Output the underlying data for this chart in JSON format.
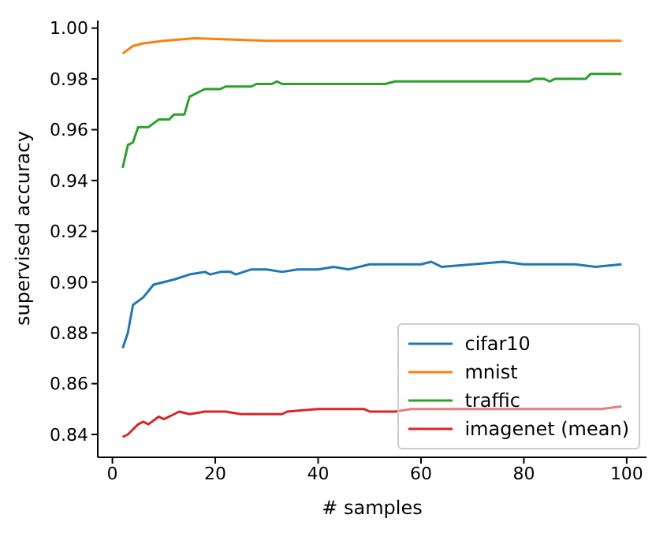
{
  "chart_data": {
    "type": "line",
    "xlabel": "# samples",
    "ylabel": "supervised accuracy",
    "xlim": [
      -2.85,
      103.85
    ],
    "xticks": [
      0,
      20,
      40,
      60,
      80,
      100
    ],
    "ylim": [
      0.831,
      1.003
    ],
    "yticks": [
      0.84,
      0.86,
      0.88,
      {
        "value": 0.9,
        "label": "0.90"
      },
      0.92,
      0.94,
      0.96,
      0.98,
      {
        "value": 1,
        "label": "1.00"
      }
    ],
    "grid": false,
    "legend": "bottom right",
    "marker": "none",
    "line_style": "solid",
    "series": [
      {
        "name": "cifar10",
        "color": "#1f77b4",
        "x": [
          2,
          3,
          4,
          6,
          8,
          10,
          12,
          15,
          18,
          19,
          21,
          23,
          24,
          27,
          30,
          33,
          36,
          40,
          43,
          46,
          50,
          55,
          60,
          62,
          64,
          70,
          76,
          80,
          90,
          94,
          99
        ],
        "values": [
          0.874,
          0.88,
          0.891,
          0.894,
          0.899,
          0.9,
          0.901,
          0.903,
          0.904,
          0.903,
          0.904,
          0.904,
          0.903,
          0.905,
          0.905,
          0.904,
          0.905,
          0.905,
          0.906,
          0.905,
          0.907,
          0.907,
          0.907,
          0.908,
          0.906,
          0.907,
          0.908,
          0.907,
          0.907,
          0.906,
          0.907
        ]
      },
      {
        "name": "mnist",
        "color": "#ff7f0e",
        "x": [
          2,
          4,
          6,
          10,
          16,
          30,
          50,
          70,
          90,
          99
        ],
        "values": [
          0.99,
          0.993,
          0.994,
          0.995,
          0.996,
          0.995,
          0.995,
          0.995,
          0.995,
          0.995
        ]
      },
      {
        "name": "traffic",
        "color": "#2ca02c",
        "x": [
          2,
          3,
          4,
          5,
          7,
          9,
          11,
          12,
          14,
          15,
          16,
          18,
          21,
          22,
          27,
          28,
          31,
          32,
          33,
          53,
          55,
          81,
          82,
          84,
          85,
          86,
          92,
          93,
          99
        ],
        "values": [
          0.945,
          0.954,
          0.955,
          0.961,
          0.961,
          0.964,
          0.964,
          0.966,
          0.966,
          0.973,
          0.974,
          0.976,
          0.976,
          0.977,
          0.977,
          0.978,
          0.978,
          0.979,
          0.978,
          0.978,
          0.979,
          0.979,
          0.98,
          0.98,
          0.979,
          0.98,
          0.98,
          0.982,
          0.982
        ]
      },
      {
        "name": "imagenet (mean)",
        "color": "#d62728",
        "x": [
          2,
          3,
          5,
          6,
          7,
          9,
          10,
          12,
          13,
          15,
          18,
          22,
          25,
          30,
          33,
          34,
          40,
          45,
          49,
          50,
          55,
          58,
          65,
          75,
          85,
          95,
          99
        ],
        "values": [
          0.839,
          0.84,
          0.844,
          0.845,
          0.844,
          0.847,
          0.846,
          0.848,
          0.849,
          0.848,
          0.849,
          0.849,
          0.848,
          0.848,
          0.848,
          0.849,
          0.85,
          0.85,
          0.85,
          0.849,
          0.849,
          0.85,
          0.85,
          0.85,
          0.85,
          0.85,
          0.851
        ]
      }
    ]
  }
}
